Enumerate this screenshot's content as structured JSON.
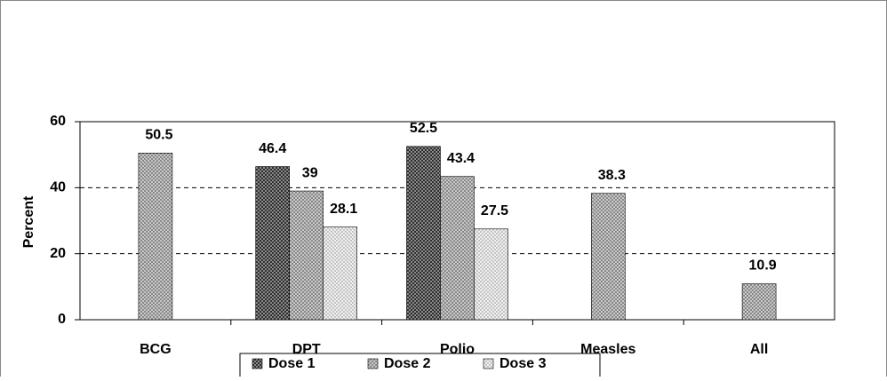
{
  "chart_data": {
    "type": "bar",
    "y_label": "Percent",
    "categories": [
      "BCG",
      "DPT",
      "Polio",
      "Measles",
      "All"
    ],
    "series": [
      {
        "name": "Dose 1",
        "color": "#444444",
        "values": [
          null,
          46.4,
          52.5,
          null,
          null
        ]
      },
      {
        "name": "Dose 2",
        "color": "#9a9a9a",
        "values": [
          50.5,
          39,
          43.4,
          38.3,
          10.9
        ]
      },
      {
        "name": "Dose 3",
        "color": "#d6d6d6",
        "values": [
          null,
          28.1,
          27.5,
          null,
          null
        ]
      }
    ],
    "ylim": [
      0,
      60
    ],
    "yticks": [
      0,
      20,
      40,
      60
    ],
    "grid": true,
    "legend": "bottom"
  }
}
